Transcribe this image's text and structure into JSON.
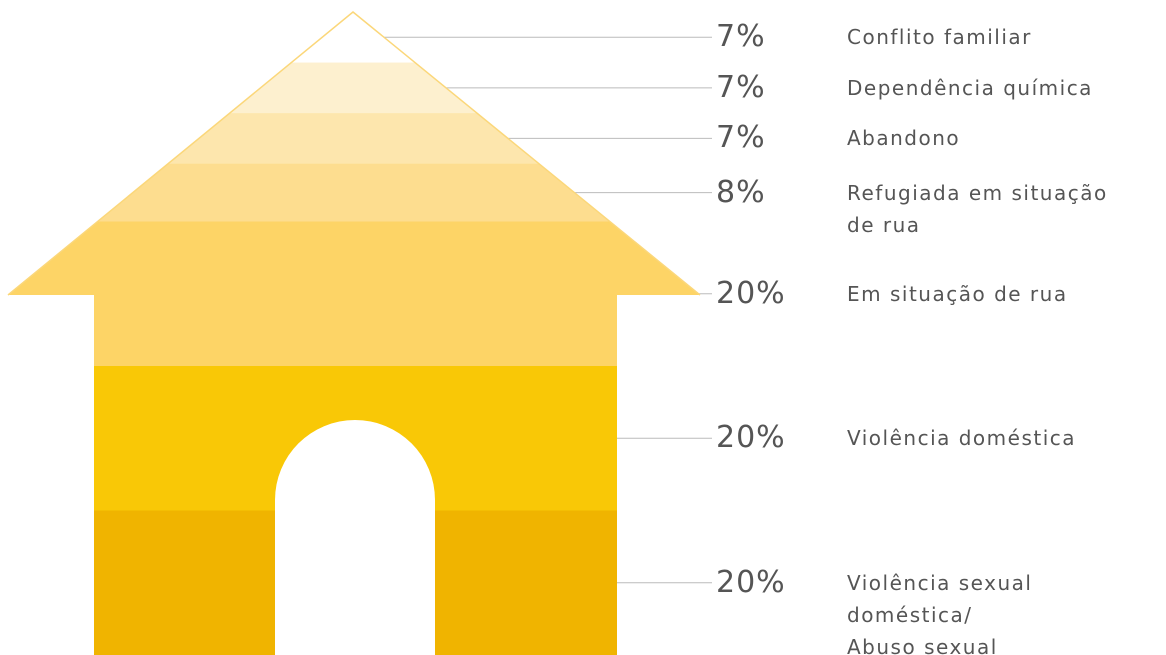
{
  "chart_data": {
    "type": "house",
    "categories": [
      "Conflito familiar",
      "Dependência química",
      "Abandono",
      "Refugiada em situação\nde rua",
      "Em situação de rua",
      "Violência doméstica",
      "Violência sexual\ndoméstica/\nAbuso sexual"
    ],
    "values": [
      7,
      7,
      7,
      8,
      20,
      20,
      20
    ],
    "value_labels": [
      "7%",
      "7%",
      "7%",
      "8%",
      "20%",
      "20%",
      "20%"
    ],
    "colors": [
      "#ffffff",
      "#fdf0cf",
      "#fde6ad",
      "#fddd8f",
      "#fdd466",
      "#f9c806",
      "#f0b400"
    ]
  }
}
